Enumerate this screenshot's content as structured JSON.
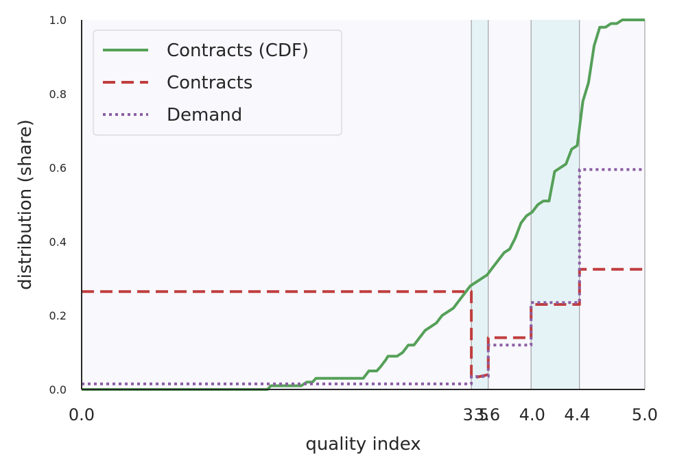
{
  "chart_data": {
    "type": "line",
    "xlabel": "quality index",
    "ylabel": "distribution (share)",
    "xlim": [
      0.0,
      5.0
    ],
    "ylim": [
      0.0,
      1.0
    ],
    "x_ticks": [
      0.0,
      3.5,
      3.6,
      4.0,
      4.4,
      5.0
    ],
    "x_tick_labels": [
      "0.0",
      "3.5",
      "3.6",
      "4.0",
      "4.4",
      "5.0"
    ],
    "y_ticks": [
      0.0,
      0.2,
      0.4,
      0.6,
      0.8,
      1.0
    ],
    "y_tick_labels": [
      "0.0",
      "0.2",
      "0.4",
      "0.6",
      "0.8",
      "1.0"
    ],
    "grid": false,
    "legend_position": "top-left",
    "background_color": "#f8f8fd",
    "shaded_bands": [
      {
        "from": 3.46,
        "to": 3.61,
        "color": "#e6f3f6"
      },
      {
        "from": 3.99,
        "to": 4.42,
        "color": "#e6f3f6"
      }
    ],
    "vertical_lines": [
      3.46,
      3.61,
      3.99,
      4.42,
      5.0
    ],
    "series": [
      {
        "name": "Contracts (CDF)",
        "style": "solid",
        "color": "#55a058",
        "x": [
          0.0,
          1.65,
          1.68,
          1.95,
          2.0,
          2.05,
          2.08,
          2.1,
          2.15,
          2.2,
          2.25,
          2.3,
          2.35,
          2.4,
          2.45,
          2.5,
          2.55,
          2.6,
          2.62,
          2.65,
          2.7,
          2.72,
          2.75,
          2.8,
          2.85,
          2.9,
          2.95,
          3.0,
          3.05,
          3.1,
          3.15,
          3.2,
          3.25,
          3.3,
          3.35,
          3.4,
          3.45,
          3.5,
          3.55,
          3.6,
          3.65,
          3.7,
          3.75,
          3.8,
          3.85,
          3.9,
          3.95,
          4.0,
          4.05,
          4.1,
          4.15,
          4.2,
          4.25,
          4.3,
          4.35,
          4.4,
          4.45,
          4.5,
          4.55,
          4.6,
          4.65,
          4.7,
          4.75,
          4.8,
          4.85,
          4.9,
          5.0
        ],
        "values": [
          0.0,
          0.0,
          0.01,
          0.01,
          0.02,
          0.02,
          0.03,
          0.03,
          0.03,
          0.03,
          0.03,
          0.03,
          0.03,
          0.03,
          0.03,
          0.03,
          0.05,
          0.05,
          0.05,
          0.06,
          0.08,
          0.09,
          0.09,
          0.09,
          0.1,
          0.12,
          0.12,
          0.14,
          0.16,
          0.17,
          0.18,
          0.2,
          0.21,
          0.22,
          0.24,
          0.26,
          0.28,
          0.29,
          0.3,
          0.31,
          0.33,
          0.35,
          0.37,
          0.38,
          0.41,
          0.45,
          0.47,
          0.48,
          0.5,
          0.51,
          0.51,
          0.59,
          0.6,
          0.61,
          0.65,
          0.66,
          0.78,
          0.83,
          0.93,
          0.98,
          0.98,
          0.99,
          0.99,
          1.0,
          1.0,
          1.0,
          1.0
        ]
      },
      {
        "name": "Contracts",
        "style": "dashed",
        "color": "#c03d3e",
        "x": [
          0.0,
          3.46,
          3.46,
          3.61,
          3.61,
          3.99,
          3.99,
          4.42,
          4.42,
          5.0
        ],
        "values": [
          0.265,
          0.265,
          0.03,
          0.04,
          0.14,
          0.14,
          0.23,
          0.23,
          0.325,
          0.325
        ]
      },
      {
        "name": "Demand",
        "style": "dotted",
        "color": "#8c5ea3",
        "x": [
          0.0,
          3.46,
          3.46,
          3.61,
          3.61,
          3.99,
          3.99,
          4.42,
          4.42,
          5.0
        ],
        "values": [
          0.015,
          0.015,
          0.035,
          0.035,
          0.12,
          0.12,
          0.235,
          0.235,
          0.595,
          0.595
        ]
      }
    ]
  }
}
